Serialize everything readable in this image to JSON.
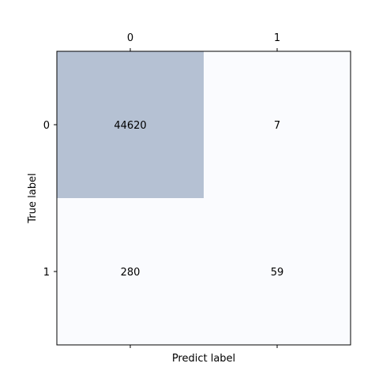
{
  "chart_data": {
    "type": "heatmap",
    "title": "",
    "xlabel": "Predict label",
    "ylabel": "True label",
    "x_categories": [
      "0",
      "1"
    ],
    "y_categories": [
      "0",
      "1"
    ],
    "values": [
      [
        44620,
        7
      ],
      [
        280,
        59
      ]
    ],
    "x_tick_position": "top",
    "grid": false,
    "legend": "none",
    "colors": {
      "high": "#b5c1d3",
      "low": "#fafbfe",
      "text": "#000000",
      "frame": "#000000"
    }
  }
}
